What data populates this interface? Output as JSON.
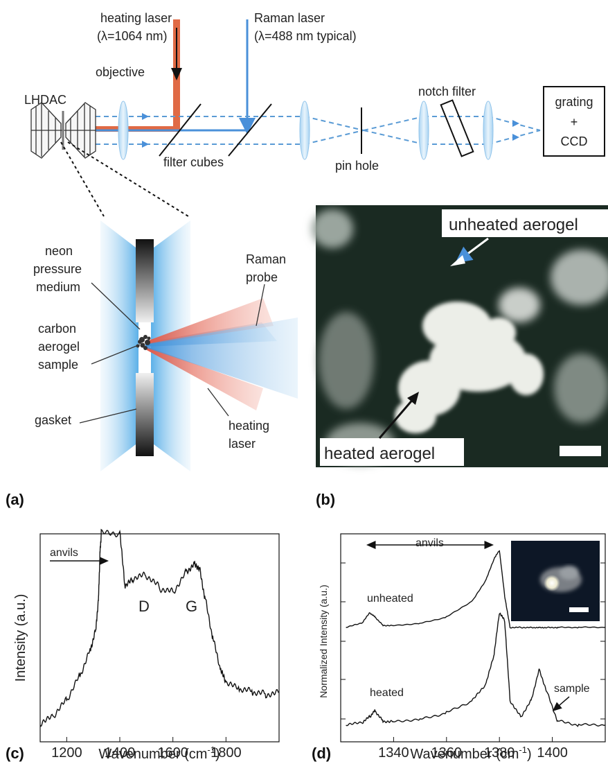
{
  "panel_a": {
    "heating_laser_label": "heating laser",
    "heating_laser_wavelength": "(λ=1064 nm)",
    "raman_laser_label": "Raman laser",
    "raman_laser_wavelength": "(λ=488 nm typical)",
    "lhdac_label": "LHDAC",
    "objective_label": "objective",
    "filter_cubes_label": "filter cubes",
    "pin_hole_label": "pin hole",
    "notch_filter_label": "notch filter",
    "grating_label_1": "grating",
    "grating_label_2": "+",
    "grating_label_3": "CCD",
    "neon_label_1": "neon",
    "neon_label_2": "pressure",
    "neon_label_3": "medium",
    "sample_label_1": "carbon",
    "sample_label_2": "aerogel",
    "sample_label_3": "sample",
    "gasket_label": "gasket",
    "raman_probe_label_1": "Raman",
    "raman_probe_label_2": "probe",
    "heating_laser_label_1": "heating",
    "heating_laser_label_2": "laser",
    "panel_tag": "(a)",
    "colors": {
      "heating": "#d9663f",
      "raman": "#4a90d9",
      "dashed": "#5a9bd5"
    }
  },
  "panel_b": {
    "unheated_label": "unheated aerogel",
    "heated_label": "heated aerogel",
    "panel_tag": "(b)"
  },
  "chart_c": {
    "type": "line",
    "xlabel": "Wavenumber (cm",
    "xlabel_sup": "-1",
    "xlabel_end": ")",
    "ylabel": "Intensity (a.u.)",
    "xticks": [
      "1200",
      "1400",
      "1600",
      "1800"
    ],
    "xlim": [
      1100,
      2000
    ],
    "anvils_label": "anvils",
    "D_label": "D",
    "G_label": "G",
    "panel_tag": "(c)"
  },
  "chart_d": {
    "type": "line",
    "xlabel": "Wavenumber (cm",
    "xlabel_sup": "-1",
    "xlabel_end": ")",
    "ylabel": "Normalized Intensity (a.u.)",
    "xticks": [
      "1340",
      "1360",
      "1380",
      "1400"
    ],
    "xlim": [
      1320,
      1420
    ],
    "anvils_label": "anvils",
    "unheated_label": "unheated",
    "heated_label": "heated",
    "sample_label": "sample",
    "panel_tag": "(d)"
  },
  "chart_data": [
    {
      "type": "line",
      "xlabel": "Wavenumber (cm-1)",
      "ylabel": "Intensity (a.u.)",
      "xlim": [
        1100,
        2000
      ],
      "x": [
        1100,
        1150,
        1200,
        1250,
        1290,
        1310,
        1320,
        1325,
        1330,
        1400,
        1420,
        1450,
        1500,
        1550,
        1600,
        1650,
        1680,
        1700,
        1720,
        1750,
        1780,
        1800,
        1850,
        1900,
        1950,
        2000
      ],
      "series": [
        {
          "values": [
            0.08,
            0.12,
            0.2,
            0.32,
            0.45,
            0.55,
            0.7,
            0.9,
            1.0,
            1.0,
            0.74,
            0.78,
            0.8,
            0.74,
            0.72,
            0.82,
            0.86,
            0.84,
            0.7,
            0.5,
            0.34,
            0.28,
            0.25,
            0.24,
            0.23,
            0.24
          ]
        }
      ]
    },
    {
      "type": "line",
      "xlabel": "Wavenumber (cm-1)",
      "ylabel": "Normalized Intensity (a.u.)",
      "xlim": [
        1320,
        1420
      ],
      "x": [
        1322,
        1328,
        1331,
        1333,
        1336,
        1340,
        1350,
        1360,
        1370,
        1375,
        1378,
        1380,
        1382,
        1384,
        1388,
        1392,
        1395,
        1398,
        1402,
        1410,
        1420
      ],
      "series": [
        {
          "name": "unheated",
          "values": [
            0.55,
            0.57,
            0.62,
            0.6,
            0.56,
            0.56,
            0.57,
            0.6,
            0.68,
            0.78,
            0.88,
            0.92,
            0.7,
            0.55,
            0.55,
            0.55,
            0.55,
            0.55,
            0.55,
            0.55,
            0.55
          ]
        },
        {
          "name": "heated",
          "values": [
            0.08,
            0.09,
            0.12,
            0.15,
            0.1,
            0.1,
            0.11,
            0.14,
            0.2,
            0.28,
            0.42,
            0.62,
            0.58,
            0.2,
            0.12,
            0.2,
            0.35,
            0.24,
            0.1,
            0.08,
            0.08
          ]
        }
      ]
    }
  ]
}
